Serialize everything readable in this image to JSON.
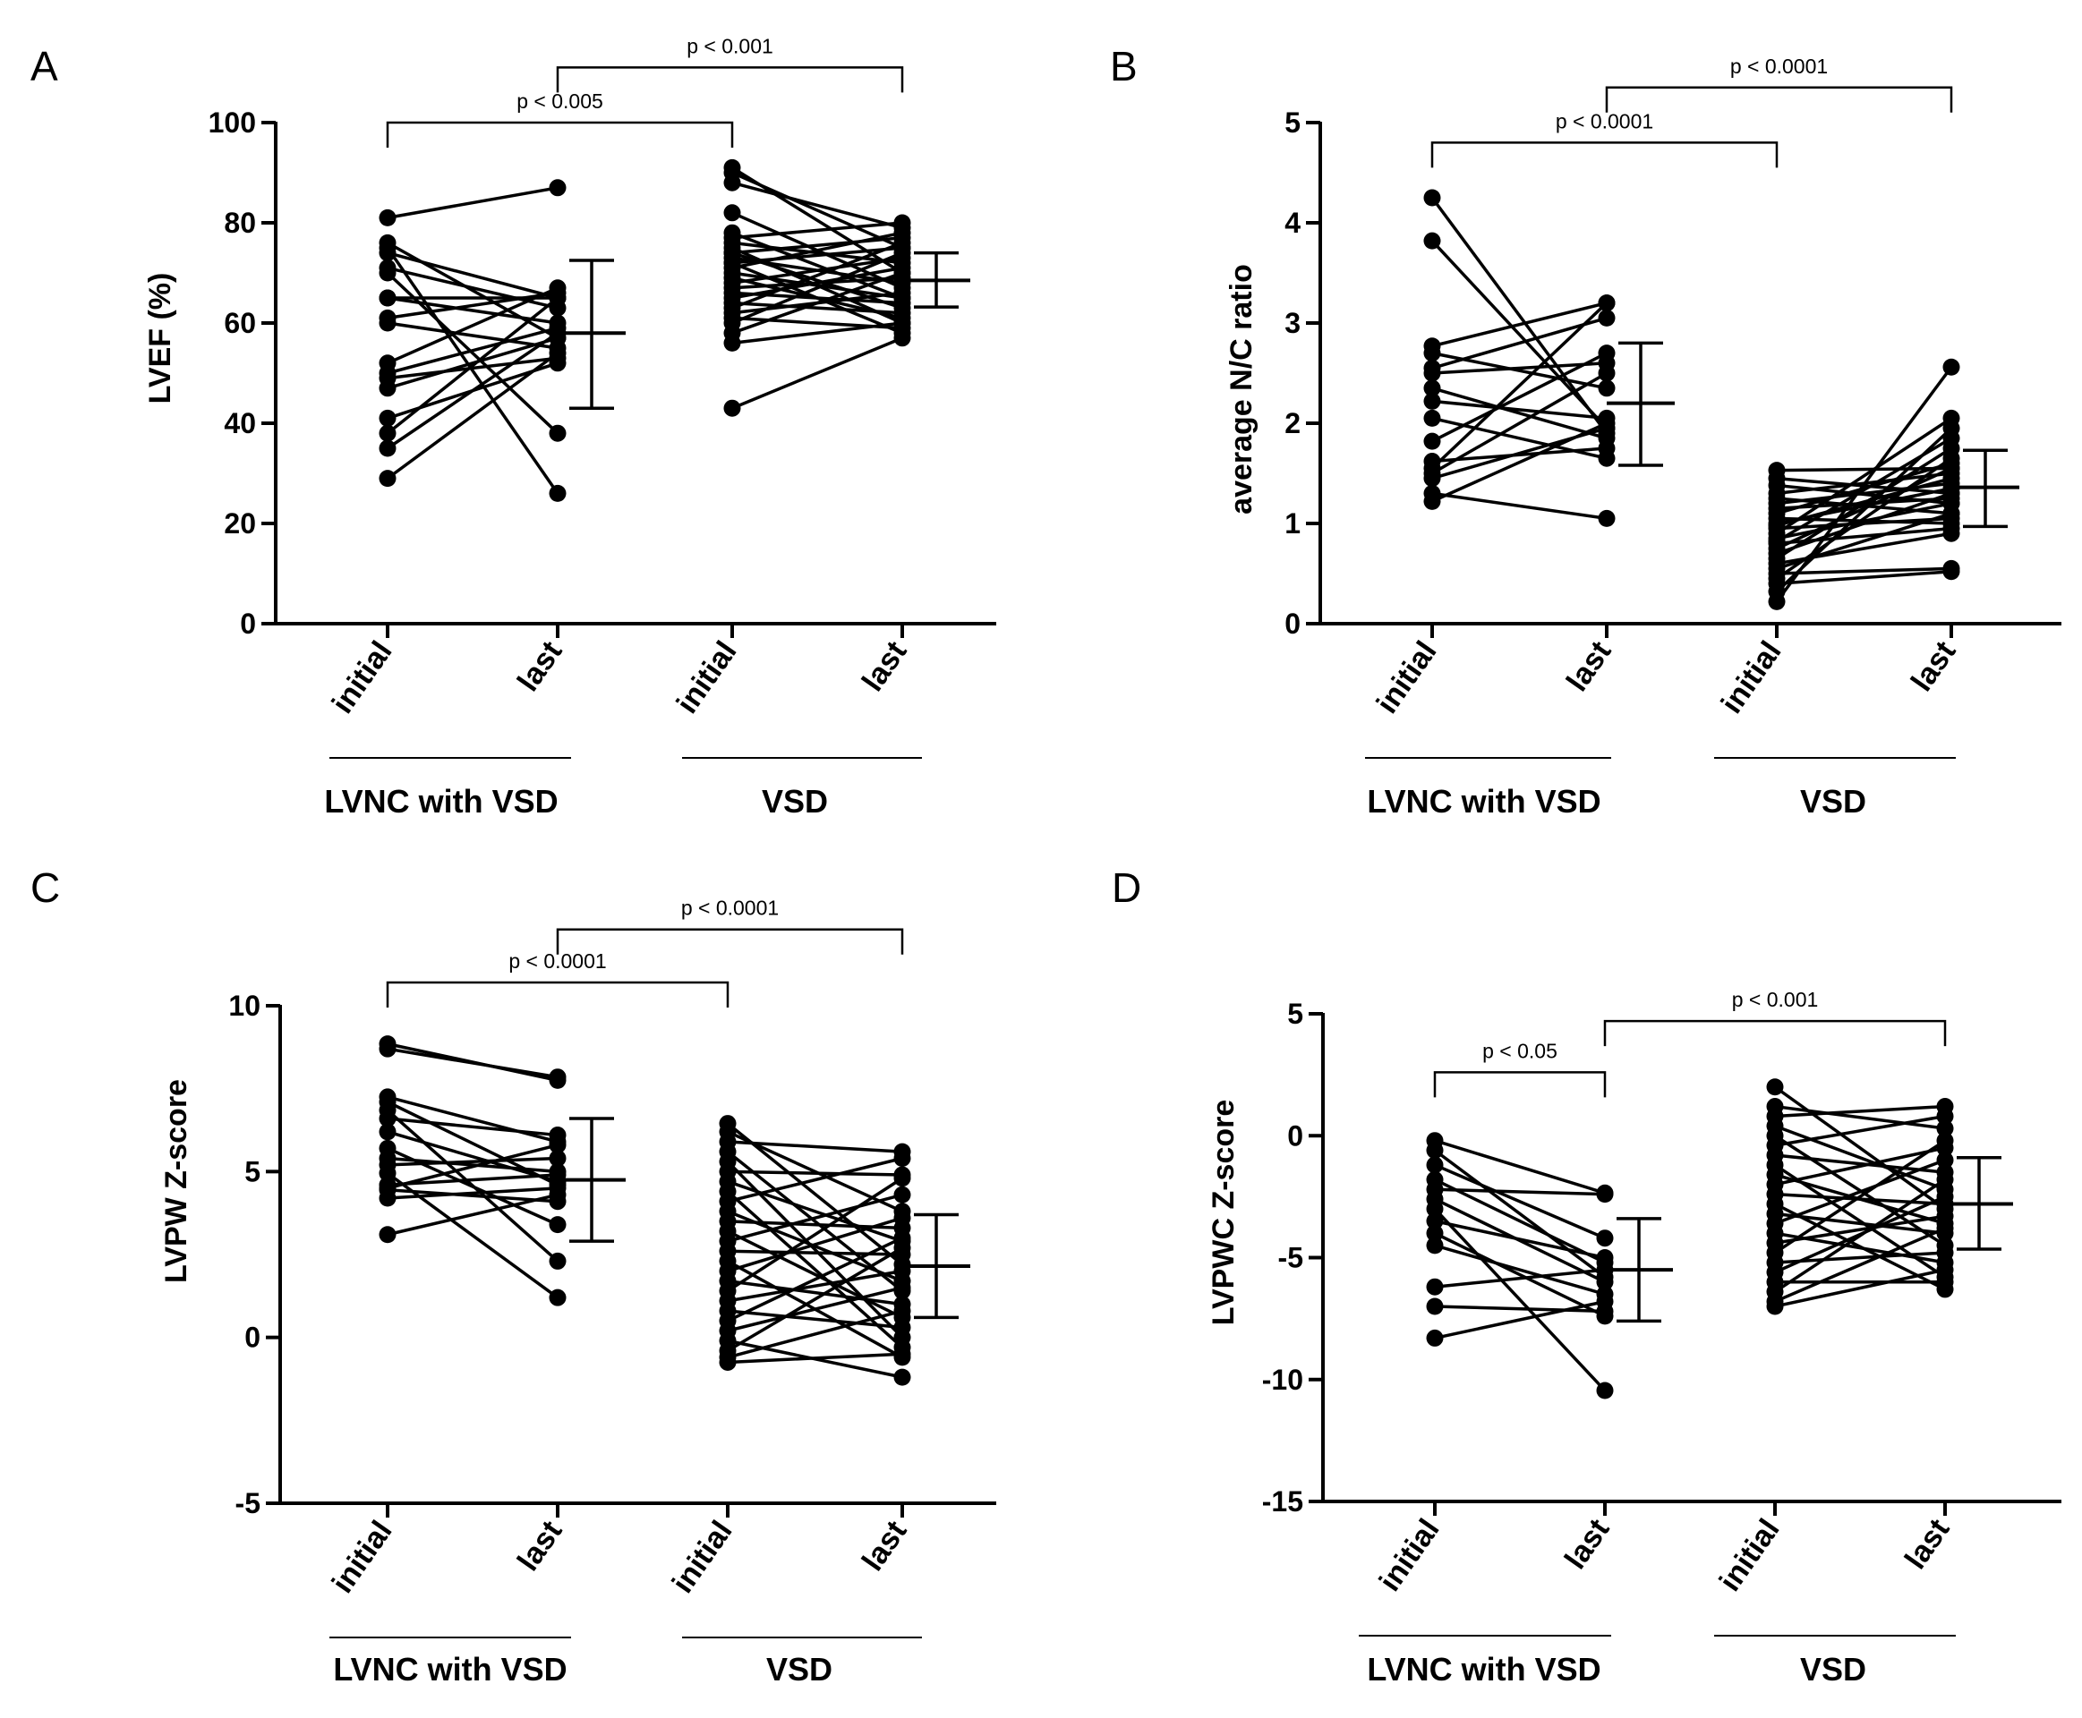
{
  "chart_data": [
    {
      "type": "scatter",
      "panel": "A",
      "ylabel": "LVEF (%)",
      "ylim": [
        0,
        100
      ],
      "yticks": [
        0,
        20,
        40,
        60,
        80,
        100
      ],
      "tick_labels": [
        "0",
        "20",
        "40",
        "60",
        "80",
        "100"
      ],
      "categories": [
        "initial",
        "last",
        "initial",
        "last"
      ],
      "groups": [
        {
          "label": "LVNC with VSD"
        },
        {
          "label": "VSD"
        }
      ],
      "brackets": [
        {
          "label": "p < 0.005",
          "from": 0,
          "to": 2,
          "y": 100
        },
        {
          "label": "p < 0.001",
          "from": 1,
          "to": 3,
          "y": 111
        }
      ],
      "summary": [
        {
          "category": 1,
          "mean": 58,
          "sd_low": 43,
          "sd_high": 72.5
        },
        {
          "category": 3,
          "mean": 68.5,
          "sd_low": 63.2,
          "sd_high": 74
        }
      ],
      "series": [
        {
          "name": "LVNC with VSD",
          "initial": [
            81,
            76,
            75,
            74,
            71,
            70,
            65,
            65,
            61,
            60,
            52,
            50,
            49,
            47,
            41,
            38,
            35,
            29
          ],
          "last": [
            87,
            57,
            26,
            65,
            63,
            38,
            65,
            60,
            66,
            55,
            67,
            59,
            53,
            57,
            52,
            65,
            58,
            54
          ]
        },
        {
          "name": "VSD",
          "initial": [
            91,
            90,
            88,
            82,
            78,
            77,
            76,
            75,
            74,
            74,
            73,
            72,
            72,
            71,
            70,
            69,
            68,
            67,
            66,
            65,
            64,
            63,
            62,
            61,
            60,
            58,
            56,
            43
          ],
          "last": [
            70,
            75,
            79,
            67,
            65,
            80,
            72,
            60,
            77,
            63,
            68,
            58,
            75,
            78,
            65,
            61,
            73,
            69,
            64,
            71,
            62,
            76,
            66,
            59,
            74,
            70,
            60,
            57
          ]
        }
      ]
    },
    {
      "type": "scatter",
      "panel": "B",
      "ylabel": "average N/C ratio",
      "ylim": [
        0,
        5
      ],
      "yticks": [
        0,
        1,
        2,
        3,
        4,
        5
      ],
      "tick_labels": [
        "0",
        "1",
        "2",
        "3",
        "4",
        "5"
      ],
      "categories": [
        "initial",
        "last",
        "initial",
        "last"
      ],
      "groups": [
        {
          "label": "LVNC with VSD"
        },
        {
          "label": "VSD"
        }
      ],
      "brackets": [
        {
          "label": "p < 0.0001",
          "from": 0,
          "to": 2,
          "y": 4.8
        },
        {
          "label": "p < 0.0001",
          "from": 1,
          "to": 3,
          "y": 5.35
        }
      ],
      "summary": [
        {
          "category": 1,
          "mean": 2.2,
          "sd_low": 1.58,
          "sd_high": 2.8
        },
        {
          "category": 3,
          "mean": 1.36,
          "sd_low": 0.97,
          "sd_high": 1.73
        }
      ],
      "series": [
        {
          "name": "LVNC with VSD",
          "initial": [
            4.25,
            3.82,
            2.77,
            2.7,
            2.55,
            2.5,
            2.35,
            2.22,
            2.05,
            1.82,
            1.62,
            1.55,
            1.5,
            1.45,
            1.3,
            1.22
          ],
          "last": [
            1.9,
            1.95,
            3.2,
            2.35,
            3.05,
            2.6,
            1.85,
            2.05,
            1.65,
            2.7,
            1.75,
            3.2,
            2.5,
            1.95,
            1.05,
            2.0
          ]
        },
        {
          "name": "VSD",
          "initial": [
            1.53,
            1.45,
            1.38,
            1.3,
            1.25,
            1.2,
            1.15,
            1.1,
            1.05,
            1.0,
            0.98,
            0.95,
            0.9,
            0.85,
            0.82,
            0.8,
            0.75,
            0.7,
            0.65,
            0.6,
            0.55,
            0.5,
            0.45,
            0.4,
            0.32,
            0.22
          ],
          "last": [
            1.55,
            1.3,
            1.2,
            1.5,
            1.1,
            1.4,
            1.25,
            1.6,
            1.0,
            1.35,
            1.45,
            1.05,
            2.05,
            1.2,
            1.85,
            0.95,
            1.55,
            1.3,
            1.75,
            0.9,
            1.1,
            0.55,
            1.65,
            0.52,
            1.95,
            2.56
          ]
        }
      ]
    },
    {
      "type": "scatter",
      "panel": "C",
      "ylabel": "LVPW Z-score",
      "ylim": [
        -5,
        10
      ],
      "yticks": [
        -5,
        0,
        5,
        10
      ],
      "tick_labels": [
        "-5",
        "0",
        "5",
        "10"
      ],
      "categories": [
        "initial",
        "last",
        "initial",
        "last"
      ],
      "groups": [
        {
          "label": "LVNC with VSD"
        },
        {
          "label": "VSD"
        }
      ],
      "brackets": [
        {
          "label": "p < 0.0001",
          "from": 0,
          "to": 2,
          "y": 10.7
        },
        {
          "label": "p < 0.0001",
          "from": 1,
          "to": 3,
          "y": 12.3
        }
      ],
      "summary": [
        {
          "category": 1,
          "mean": 4.75,
          "sd_low": 2.9,
          "sd_high": 6.6
        },
        {
          "category": 3,
          "mean": 2.15,
          "sd_low": 0.6,
          "sd_high": 3.7
        }
      ],
      "series": [
        {
          "name": "LVNC with VSD",
          "initial": [
            8.85,
            8.7,
            7.25,
            7.1,
            6.85,
            6.6,
            6.2,
            5.7,
            5.4,
            5.2,
            4.95,
            4.6,
            4.5,
            4.45,
            4.2,
            3.1
          ],
          "last": [
            7.75,
            7.85,
            5.9,
            4.6,
            2.3,
            6.1,
            4.7,
            3.4,
            5.0,
            5.4,
            1.2,
            4.9,
            5.8,
            4.1,
            4.5,
            4.3
          ]
        },
        {
          "name": "VSD",
          "initial": [
            6.45,
            6.2,
            5.9,
            5.6,
            5.3,
            5.0,
            4.7,
            4.4,
            4.1,
            3.8,
            3.5,
            3.2,
            2.9,
            2.6,
            2.3,
            2.0,
            1.7,
            1.4,
            1.1,
            0.8,
            0.5,
            0.2,
            -0.1,
            -0.4,
            -0.6,
            -0.75
          ],
          "last": [
            2.2,
            3.8,
            5.6,
            1.4,
            0.0,
            4.9,
            2.9,
            -0.3,
            5.4,
            1.7,
            3.3,
            0.6,
            4.3,
            2.5,
            -0.6,
            3.6,
            1.0,
            4.8,
            2.0,
            0.3,
            3.0,
            1.5,
            -1.2,
            2.7,
            0.8,
            -0.5
          ]
        }
      ]
    },
    {
      "type": "scatter",
      "panel": "D",
      "ylabel": "LVPWC Z-score",
      "ylim": [
        -15,
        5
      ],
      "yticks": [
        -15,
        -10,
        -5,
        0,
        5
      ],
      "tick_labels": [
        "-15",
        "-10",
        "-5",
        "0",
        "5"
      ],
      "categories": [
        "initial",
        "last",
        "initial",
        "last"
      ],
      "groups": [
        {
          "label": "LVNC with VSD"
        },
        {
          "label": "VSD"
        }
      ],
      "brackets": [
        {
          "label": "p < 0.05",
          "from": 0,
          "to": 1,
          "y": 2.6
        },
        {
          "label": "p < 0.001",
          "from": 1,
          "to": 3,
          "y": 4.7
        }
      ],
      "summary": [
        {
          "category": 1,
          "mean": -5.5,
          "sd_low": -7.6,
          "sd_high": -3.4
        },
        {
          "category": 3,
          "mean": -2.8,
          "sd_low": -4.65,
          "sd_high": -0.9
        }
      ],
      "series": [
        {
          "name": "LVNC with VSD",
          "initial": [
            -0.2,
            -0.6,
            -1.2,
            -1.8,
            -2.2,
            -2.6,
            -3.0,
            -3.5,
            -4.0,
            -4.5,
            -6.2,
            -7.0,
            -8.3
          ],
          "last": [
            -2.35,
            -5.8,
            -4.2,
            -5.2,
            -2.4,
            -6.0,
            -10.45,
            -5.0,
            -7.4,
            -6.5,
            -5.5,
            -7.2,
            -6.8
          ]
        },
        {
          "name": "VSD",
          "initial": [
            2.0,
            1.2,
            0.8,
            0.4,
            0.0,
            -0.4,
            -0.8,
            -1.2,
            -1.6,
            -2.0,
            -2.4,
            -2.8,
            -3.2,
            -3.6,
            -4.0,
            -4.4,
            -4.8,
            -5.2,
            -5.6,
            -6.0,
            -6.4,
            -6.8,
            -7.0
          ],
          "last": [
            -3.0,
            0.3,
            1.2,
            -2.2,
            -4.5,
            0.8,
            -1.5,
            -5.8,
            -3.6,
            -0.5,
            -2.8,
            -6.3,
            -4.0,
            -1.0,
            -5.2,
            -3.3,
            -0.2,
            -4.8,
            -2.5,
            -6.0,
            -1.8,
            -3.8,
            -5.5
          ]
        }
      ]
    }
  ]
}
